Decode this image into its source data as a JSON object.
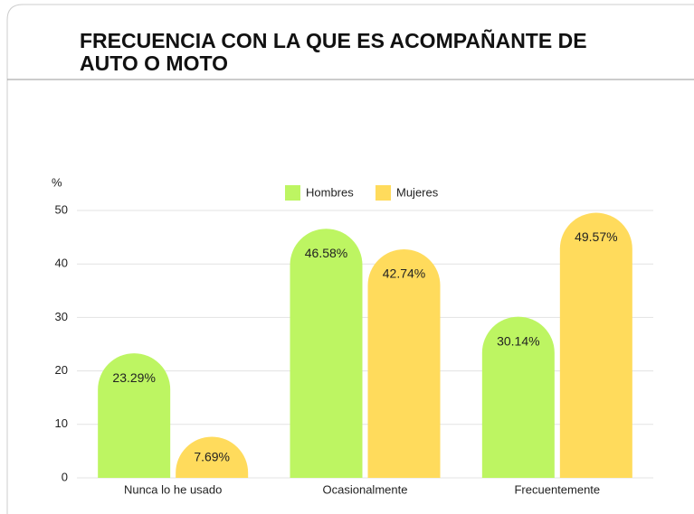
{
  "chart_data": {
    "type": "bar",
    "title_lines": [
      "FRECUENCIA CON LA QUE ES ACOMPAÑANTE DE",
      "AUTO O MOTO"
    ],
    "y_label": "%",
    "categories": [
      "Nunca lo he usado",
      "Ocasionalmente",
      "Frecuentemente"
    ],
    "series": [
      {
        "name": "Hombres",
        "color": "#bdf562",
        "values": [
          23.29,
          46.58,
          30.14
        ],
        "value_labels": [
          "23.29%",
          "46.58%",
          "30.14%"
        ]
      },
      {
        "name": "Mujeres",
        "color": "#ffdb5c",
        "values": [
          7.69,
          42.74,
          49.57
        ],
        "value_labels": [
          "7.69%",
          "42.74%",
          "49.57%"
        ]
      }
    ],
    "ylim": [
      0,
      50
    ],
    "yticks": [
      0,
      10,
      20,
      30,
      40,
      50
    ],
    "grid": true,
    "legend": "top"
  }
}
